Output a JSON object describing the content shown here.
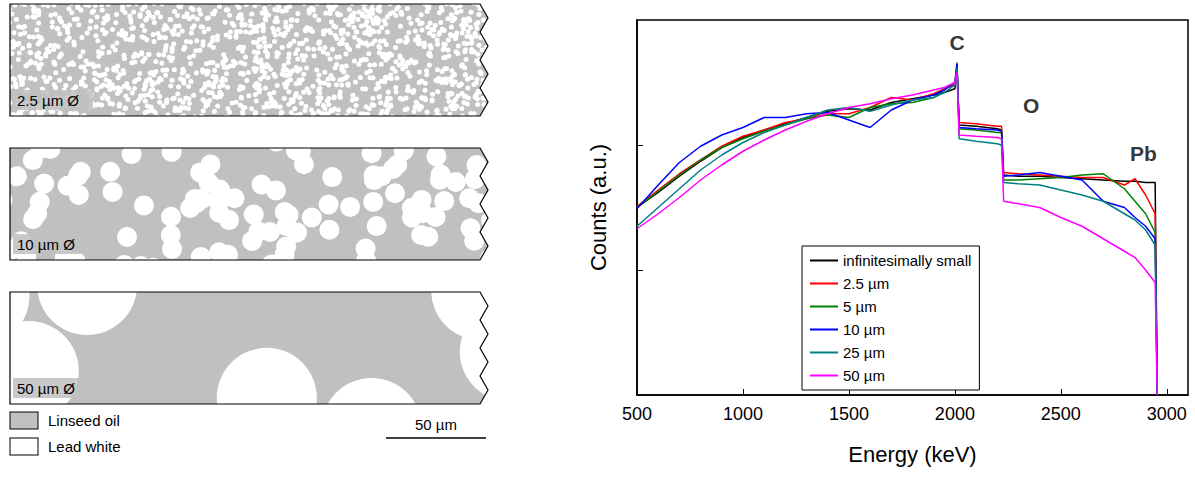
{
  "chart_data": {
    "type": "line",
    "xlabel": "Energy (keV)",
    "ylabel": "Counts (a.u.)",
    "xlim": [
      500,
      3100
    ],
    "xticks": [
      500,
      1000,
      1500,
      2000,
      2500,
      3000
    ],
    "ylim": [
      0,
      3
    ],
    "yticks": [
      1,
      2
    ],
    "tick_labels": "x",
    "legend": "lower center",
    "x": [
      500,
      600,
      700,
      800,
      900,
      1000,
      1100,
      1200,
      1300,
      1400,
      1500,
      1600,
      1700,
      1800,
      1900,
      1950,
      2000,
      2010,
      2020,
      2100,
      2200,
      2220,
      2230,
      2300,
      2400,
      2500,
      2600,
      2700,
      2800,
      2850,
      2900,
      2945,
      2955
    ],
    "series": [
      {
        "name": "infinitesimally small",
        "color": "#000000",
        "values": [
          1.5,
          1.62,
          1.75,
          1.87,
          1.98,
          2.06,
          2.12,
          2.17,
          2.22,
          2.27,
          2.29,
          2.28,
          2.34,
          2.37,
          2.4,
          2.42,
          2.45,
          2.63,
          2.16,
          2.15,
          2.13,
          2.12,
          1.76,
          1.75,
          1.75,
          1.74,
          1.73,
          1.72,
          1.71,
          1.71,
          1.7,
          1.7,
          0
        ]
      },
      {
        "name": "2.5 µm",
        "color": "#ff0000",
        "values": [
          1.51,
          1.64,
          1.77,
          1.88,
          1.99,
          2.07,
          2.12,
          2.18,
          2.21,
          2.25,
          2.25,
          2.3,
          2.38,
          2.36,
          2.41,
          2.45,
          2.48,
          2.6,
          2.18,
          2.17,
          2.15,
          2.15,
          1.78,
          1.77,
          1.76,
          1.75,
          1.74,
          1.74,
          1.68,
          1.73,
          1.6,
          1.45,
          0
        ]
      },
      {
        "name": "5 µm",
        "color": "#008000",
        "values": [
          1.5,
          1.63,
          1.76,
          1.88,
          1.98,
          2.05,
          2.11,
          2.16,
          2.21,
          2.24,
          2.22,
          2.3,
          2.33,
          2.34,
          2.38,
          2.44,
          2.5,
          2.66,
          2.13,
          2.12,
          2.1,
          2.1,
          1.72,
          1.72,
          1.73,
          1.74,
          1.76,
          1.77,
          1.65,
          1.55,
          1.45,
          1.3,
          0
        ]
      },
      {
        "name": "10 µm",
        "color": "#0000ff",
        "values": [
          1.49,
          1.68,
          1.86,
          1.99,
          2.08,
          2.14,
          2.22,
          2.22,
          2.25,
          2.26,
          2.2,
          2.14,
          2.28,
          2.36,
          2.4,
          2.44,
          2.5,
          2.65,
          2.14,
          2.13,
          2.12,
          2.11,
          1.75,
          1.76,
          1.78,
          1.75,
          1.72,
          1.55,
          1.5,
          1.42,
          1.35,
          1.25,
          0
        ]
      },
      {
        "name": "25 µm",
        "color": "#008080",
        "values": [
          1.35,
          1.5,
          1.65,
          1.8,
          1.92,
          2.02,
          2.1,
          2.16,
          2.22,
          2.28,
          2.3,
          2.27,
          2.32,
          2.36,
          2.38,
          2.42,
          2.48,
          2.62,
          2.05,
          2.03,
          2.01,
          2.0,
          1.7,
          1.69,
          1.68,
          1.64,
          1.6,
          1.55,
          1.45,
          1.4,
          1.32,
          1.2,
          0
        ]
      },
      {
        "name": "50 µm",
        "color": "#ff00ff",
        "values": [
          1.33,
          1.45,
          1.58,
          1.72,
          1.84,
          1.95,
          2.04,
          2.12,
          2.19,
          2.25,
          2.3,
          2.33,
          2.37,
          2.4,
          2.44,
          2.46,
          2.5,
          2.58,
          2.08,
          2.07,
          2.06,
          2.05,
          1.55,
          1.53,
          1.5,
          1.42,
          1.35,
          1.25,
          1.15,
          1.1,
          1.0,
          0.9,
          0
        ]
      }
    ],
    "annotations": [
      {
        "text": "C",
        "x": 2010,
        "y": 2.82
      },
      {
        "text": "O",
        "x": 2360,
        "y": 2.32
      },
      {
        "text": "Pb",
        "x": 2890,
        "y": 1.93
      }
    ]
  },
  "schematic": {
    "panels": [
      {
        "label": "2.5 µm Ø",
        "diameter": 2.5
      },
      {
        "label": "10 µm Ø",
        "diameter": 10
      },
      {
        "label": "50 µm Ø",
        "diameter": 50
      }
    ],
    "materials": [
      {
        "label": "Linseed oil",
        "color": "#c0c0c0"
      },
      {
        "label": "Lead white",
        "color": "#ffffff"
      }
    ],
    "scale_bar": {
      "label": "50 µm",
      "length": 50
    }
  }
}
